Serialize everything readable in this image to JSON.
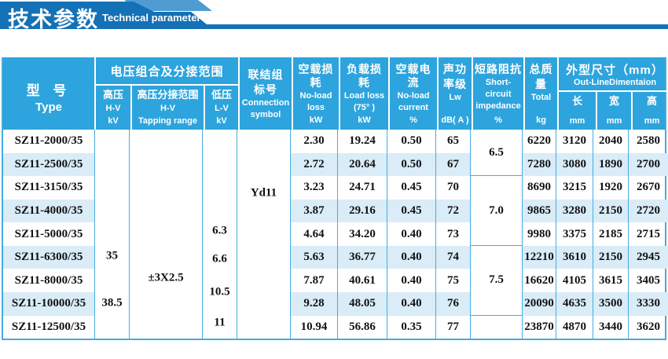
{
  "banner": {
    "title_zh": "技术参数",
    "title_en": "Technical parameter"
  },
  "colors": {
    "header_bg": "#2da4dd",
    "stripe": "#d9ecf8",
    "grid": "#45ace0",
    "banner": "#1471b5",
    "banner_light": "#4f9cd3"
  },
  "table": {
    "headers": {
      "type": [
        "型  号",
        "Type"
      ],
      "voltage_group": "电压组合及分接范围",
      "hv": [
        "高压",
        "H-V",
        "kV"
      ],
      "tapping": [
        "高压分接范围",
        "H-V",
        "Tapping range"
      ],
      "lv": [
        "低压",
        "L-V",
        "kV"
      ],
      "connection": [
        "联结组",
        "标号",
        "Connection",
        "symbol"
      ],
      "no_load_loss": [
        "空载损耗",
        "No-load",
        "loss",
        "kW"
      ],
      "load_loss": [
        "负载损耗",
        "Load loss",
        "(75°  )",
        "kW"
      ],
      "no_load_current": [
        "空载电流",
        "No-load",
        "current",
        "%"
      ],
      "sound": [
        "声功",
        "率级",
        "Lw",
        "dB( A )"
      ],
      "impedance": [
        "短路阻抗",
        "Short-",
        "circuit",
        "impedance",
        "%"
      ],
      "total": [
        "总质",
        "量",
        "Total",
        "kg"
      ],
      "dims_group": [
        "外型尺寸（mm）",
        "Out-LineDimentaion"
      ],
      "dim_l": [
        "长",
        "mm"
      ],
      "dim_w": [
        "宽",
        "mm"
      ],
      "dim_h": [
        "高",
        "mm"
      ]
    },
    "merged": {
      "connection_symbol": "Yd11",
      "hv_values": [
        "35",
        "38.5"
      ],
      "tapping_range": "±3X2.5",
      "lv_values": [
        "6.3",
        "6.6",
        "10.5",
        "11"
      ]
    },
    "impedance_sections": [
      {
        "value": "6.5",
        "rows": 2
      },
      {
        "value": "7.0",
        "rows": 3
      },
      {
        "value": "7.5",
        "rows": 3
      },
      {
        "value": "",
        "rows": 1
      }
    ],
    "rows": [
      {
        "type": "SZ11-2000/35",
        "no_load_loss": "2.30",
        "load_loss": "19.24",
        "no_load_current": "0.50",
        "lw": "65",
        "total": "6220",
        "l": "3120",
        "w": "2040",
        "h": "2580"
      },
      {
        "type": "SZ11-2500/35",
        "no_load_loss": "2.72",
        "load_loss": "20.64",
        "no_load_current": "0.50",
        "lw": "67",
        "total": "7280",
        "l": "3080",
        "w": "1890",
        "h": "2700"
      },
      {
        "type": "SZ11-3150/35",
        "no_load_loss": "3.23",
        "load_loss": "24.71",
        "no_load_current": "0.45",
        "lw": "70",
        "total": "8690",
        "l": "3215",
        "w": "1920",
        "h": "2670"
      },
      {
        "type": "SZ11-4000/35",
        "no_load_loss": "3.87",
        "load_loss": "29.16",
        "no_load_current": "0.45",
        "lw": "72",
        "total": "9865",
        "l": "3280",
        "w": "2150",
        "h": "2720"
      },
      {
        "type": "SZ11-5000/35",
        "no_load_loss": "4.64",
        "load_loss": "34.20",
        "no_load_current": "0.40",
        "lw": "73",
        "total": "9980",
        "l": "3375",
        "w": "2185",
        "h": "2715"
      },
      {
        "type": "SZ11-6300/35",
        "no_load_loss": "5.63",
        "load_loss": "36.77",
        "no_load_current": "0.40",
        "lw": "74",
        "total": "12210",
        "l": "3610",
        "w": "2150",
        "h": "2945"
      },
      {
        "type": "SZ11-8000/35",
        "no_load_loss": "7.87",
        "load_loss": "40.61",
        "no_load_current": "0.40",
        "lw": "75",
        "total": "16620",
        "l": "4105",
        "w": "3615",
        "h": "3405"
      },
      {
        "type": "SZ11-10000/35",
        "no_load_loss": "9.28",
        "load_loss": "48.05",
        "no_load_current": "0.40",
        "lw": "76",
        "total": "20090",
        "l": "4635",
        "w": "3500",
        "h": "3330"
      },
      {
        "type": "SZ11-12500/35",
        "no_load_loss": "10.94",
        "load_loss": "56.86",
        "no_load_current": "0.35",
        "lw": "77",
        "total": "23870",
        "l": "4870",
        "w": "3440",
        "h": "3620"
      }
    ]
  }
}
